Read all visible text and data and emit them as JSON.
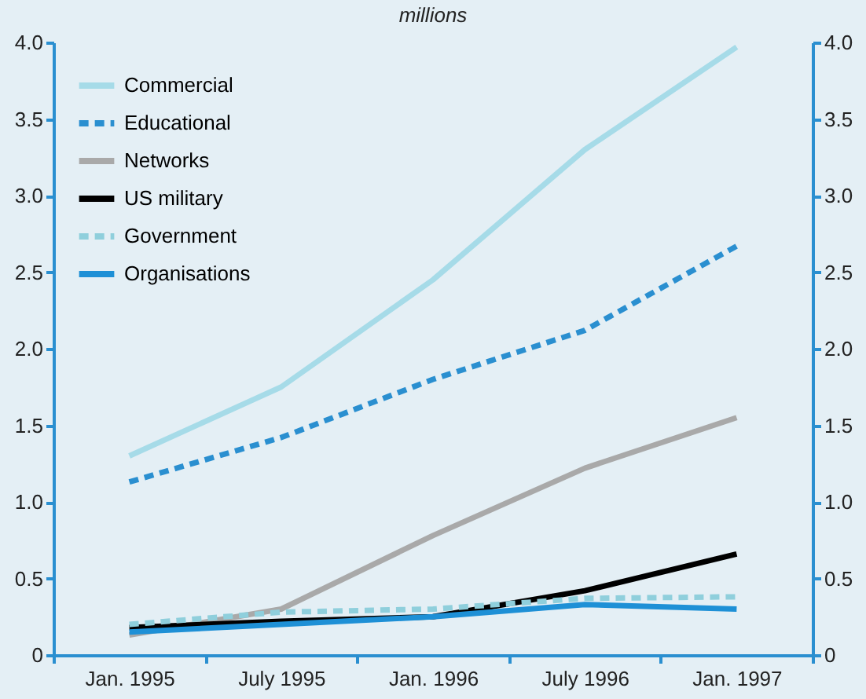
{
  "chart_data": {
    "type": "line",
    "title": "millions",
    "categories": [
      "Jan. 1995",
      "July 1995",
      "Jan. 1996",
      "July 1996",
      "Jan. 1997"
    ],
    "series": [
      {
        "name": "Commercial",
        "color": "#a6dbe8",
        "line_style": "solid",
        "values": [
          1.3,
          1.75,
          2.45,
          3.3,
          3.97
        ]
      },
      {
        "name": "Educational",
        "color": "#2a8fd0",
        "line_style": "dashed",
        "values": [
          1.13,
          1.42,
          1.8,
          2.12,
          2.67
        ]
      },
      {
        "name": "Networks",
        "color": "#a9a9a9",
        "line_style": "solid",
        "values": [
          0.13,
          0.3,
          0.78,
          1.22,
          1.55
        ]
      },
      {
        "name": "US military",
        "color": "#000000",
        "line_style": "solid",
        "values": [
          0.18,
          0.22,
          0.25,
          0.42,
          0.66
        ]
      },
      {
        "name": "Government",
        "color": "#8fcfdc",
        "line_style": "dashed",
        "values": [
          0.2,
          0.28,
          0.3,
          0.37,
          0.38
        ]
      },
      {
        "name": "Organisations",
        "color": "#1e90d6",
        "line_style": "solid",
        "values": [
          0.15,
          0.2,
          0.25,
          0.33,
          0.3
        ]
      }
    ],
    "ylim": [
      0,
      4
    ],
    "yticks": [
      0,
      {
        "value": 0.5,
        "label": "0.5"
      },
      {
        "value": 1,
        "label": "1.0"
      },
      {
        "value": 1.5,
        "label": "1.5"
      },
      {
        "value": 2,
        "label": "2.0"
      },
      {
        "value": 2.5,
        "label": "2.5"
      },
      {
        "value": 3,
        "label": "3.0"
      },
      {
        "value": 3.5,
        "label": "3.5"
      },
      {
        "value": 4,
        "label": "4.0"
      }
    ],
    "y2lim": [
      0,
      4
    ],
    "y2ticks": [
      0,
      {
        "value": 0.5,
        "label": "0.5"
      },
      {
        "value": 1,
        "label": "1.0"
      },
      {
        "value": 1.5,
        "label": "1.5"
      },
      {
        "value": 2,
        "label": "2.0"
      },
      {
        "value": 2.5,
        "label": "2.5"
      },
      {
        "value": 3,
        "label": "3.0"
      },
      {
        "value": 3.5,
        "label": "3.5"
      },
      {
        "value": 4,
        "label": "4.0"
      }
    ],
    "grid": false,
    "legend": "top left",
    "marker": "none"
  }
}
